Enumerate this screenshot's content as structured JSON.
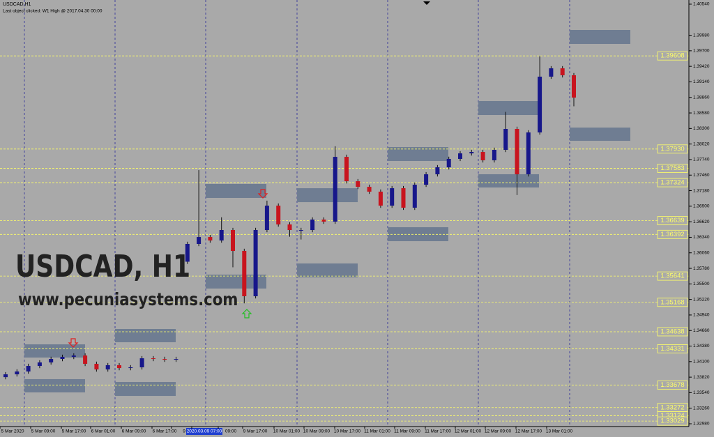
{
  "chart_data": {
    "type": "candlestick",
    "title": "USDCAD,H1",
    "subtitle": "Last object clicked: W1 High @ 2017.04.30 00:00",
    "watermark": "USDCAD, H1",
    "website": "www.pecuniasystems.com",
    "up_color": "#17178a",
    "down_color": "#c8141e",
    "level_color": "#ffff66",
    "zone_color": "#6f7d92",
    "grid": false,
    "ylim": [
      1.3293,
      1.40615
    ],
    "yticks": [
      {
        "value": 1.4054,
        "label": "1.40540"
      },
      {
        "value": 1.3998,
        "label": "1.39980"
      },
      {
        "value": 1.397,
        "label": "1.39700"
      },
      {
        "value": 1.3942,
        "label": "1.39420"
      },
      {
        "value": 1.3914,
        "label": "1.39140"
      },
      {
        "value": 1.3886,
        "label": "1.38860"
      },
      {
        "value": 1.3858,
        "label": "1.38580"
      },
      {
        "value": 1.383,
        "label": "1.38300"
      },
      {
        "value": 1.3802,
        "label": "1.38020"
      },
      {
        "value": 1.3774,
        "label": "1.37740"
      },
      {
        "value": 1.3746,
        "label": "1.37460"
      },
      {
        "value": 1.3718,
        "label": "1.37180"
      },
      {
        "value": 1.369,
        "label": "1.36900"
      },
      {
        "value": 1.3662,
        "label": "1.36620"
      },
      {
        "value": 1.3634,
        "label": "1.36340"
      },
      {
        "value": 1.3606,
        "label": "1.36060"
      },
      {
        "value": 1.3578,
        "label": "1.35780"
      },
      {
        "value": 1.355,
        "label": "1.35500"
      },
      {
        "value": 1.3522,
        "label": "1.35220"
      },
      {
        "value": 1.3494,
        "label": "1.34940"
      },
      {
        "value": 1.3466,
        "label": "1.34660"
      },
      {
        "value": 1.3438,
        "label": "1.34380"
      },
      {
        "value": 1.341,
        "label": "1.34100"
      },
      {
        "value": 1.3382,
        "label": "1.33820"
      },
      {
        "value": 1.3354,
        "label": "1.33540"
      },
      {
        "value": 1.3326,
        "label": "1.33260"
      },
      {
        "value": 1.3298,
        "label": "1.32980"
      }
    ],
    "x_labels": [
      "5 Mar 2020",
      "5 Mar 09:00",
      "5 Mar 17:00",
      "6 Mar 01:00",
      "6 Mar 09:00",
      "6 Mar 17:00",
      "9",
      "2020.03.09 07:00",
      "09:00",
      "9 Mar 17:00",
      "10 Mar 01:00",
      "10 Mar 09:00",
      "10 Mar 17:00",
      "11 Mar 01:00",
      "11 Mar 09:00",
      "11 Mar 17:00",
      "12 Mar 01:00",
      "12 Mar 09:00",
      "12 Mar 17:00",
      "13 Mar 01:00"
    ],
    "levels": [
      1.39608,
      {
        "value": 1.3793,
        "label": "1.37930"
      },
      1.37583,
      1.37324,
      1.36639,
      1.36392,
      1.35641,
      1.35168,
      1.34638,
      1.34331,
      1.33678,
      1.33272,
      1.33124,
      1.33029
    ],
    "zones": [
      {
        "top": 1.34411,
        "bottom": 1.34173
      },
      {
        "top": 1.33784,
        "bottom": 1.33545
      },
      {
        "top": 1.34688,
        "bottom": 1.34449
      },
      {
        "top": 1.33733,
        "bottom": 1.33482
      },
      {
        "top": 1.373,
        "bottom": 1.37049
      },
      {
        "top": 1.35667,
        "bottom": 1.35416
      },
      {
        "top": 1.37224,
        "bottom": 1.36973
      },
      {
        "top": 1.35868,
        "bottom": 1.35617
      },
      {
        "top": 1.37965,
        "bottom": 1.37714
      },
      {
        "top": 1.36521,
        "bottom": 1.3627
      },
      {
        "top": 1.38794,
        "bottom": 1.38543
      },
      {
        "top": 1.37476,
        "bottom": 1.37237
      },
      {
        "top": 1.40075,
        "bottom": 1.39824
      },
      {
        "top": 1.38317,
        "bottom": 1.38078
      }
    ],
    "open": [
      1.3382,
      1.33871,
      1.33922,
      1.34022,
      1.34085,
      1.34148,
      1.34185,
      1.3421,
      1.3406,
      1.33959,
      1.34035,
      1.33984,
      1.33997,
      1.3416,
      1.34148,
      1.34135,
      1.359,
      1.3622,
      1.36345,
      1.36282,
      1.36471,
      1.36094,
      1.35278,
      1.36471,
      1.3691,
      1.36571,
      1.36471,
      1.36471,
      1.36659,
      1.36622,
      1.37789,
      1.3735,
      1.37249,
      1.37162,
      1.3691,
      1.37224,
      1.36873,
      1.37287,
      1.37475,
      1.37601,
      1.37752,
      1.37852,
      1.37877,
      1.37727,
      1.37915,
      1.38292,
      1.37475,
      1.38229,
      1.39234,
      1.39384,
      1.39259
    ],
    "high": [
      1.33911,
      1.33962,
      1.34062,
      1.34125,
      1.34188,
      1.34225,
      1.3425,
      1.3425,
      1.341,
      1.34075,
      1.34075,
      1.34037,
      1.342,
      1.342,
      1.34188,
      1.34188,
      1.3626,
      1.3755,
      1.36385,
      1.367,
      1.36511,
      1.36134,
      1.36511,
      1.37,
      1.3695,
      1.36611,
      1.36511,
      1.36699,
      1.36699,
      1.3798,
      1.37829,
      1.3739,
      1.37289,
      1.37202,
      1.37264,
      1.37264,
      1.37327,
      1.37515,
      1.37641,
      1.37792,
      1.37892,
      1.37917,
      1.37917,
      1.37955,
      1.386,
      1.38332,
      1.38269,
      1.396,
      1.39424,
      1.39424,
      1.39299
    ],
    "low": [
      1.3378,
      1.33831,
      1.33882,
      1.33982,
      1.34045,
      1.34108,
      1.34145,
      1.3402,
      1.33919,
      1.33919,
      1.33944,
      1.33944,
      1.33957,
      1.34108,
      1.34095,
      1.34095,
      1.3586,
      1.3618,
      1.36242,
      1.36242,
      1.358,
      1.3515,
      1.35238,
      1.36431,
      1.36531,
      1.3635,
      1.363,
      1.36431,
      1.36582,
      1.36582,
      1.3731,
      1.37209,
      1.37122,
      1.3687,
      1.3687,
      1.36833,
      1.36833,
      1.37247,
      1.37435,
      1.37561,
      1.37712,
      1.37812,
      1.37687,
      1.37687,
      1.37875,
      1.371,
      1.37435,
      1.38189,
      1.39194,
      1.39219,
      1.387
    ],
    "close": [
      1.33871,
      1.33922,
      1.34022,
      1.34085,
      1.34148,
      1.34185,
      1.3421,
      1.3406,
      1.33959,
      1.34035,
      1.33984,
      1.33997,
      1.3416,
      1.34148,
      1.34135,
      1.34148,
      1.3622,
      1.36345,
      1.36282,
      1.36471,
      1.36094,
      1.35278,
      1.36471,
      1.3691,
      1.36571,
      1.36471,
      1.36471,
      1.36659,
      1.36622,
      1.37789,
      1.3735,
      1.37249,
      1.37162,
      1.3691,
      1.37224,
      1.36873,
      1.37287,
      1.37475,
      1.37601,
      1.37752,
      1.37852,
      1.37877,
      1.37727,
      1.37915,
      1.38292,
      1.37475,
      1.38229,
      1.39234,
      1.39384,
      1.39259,
      1.38857
    ]
  }
}
